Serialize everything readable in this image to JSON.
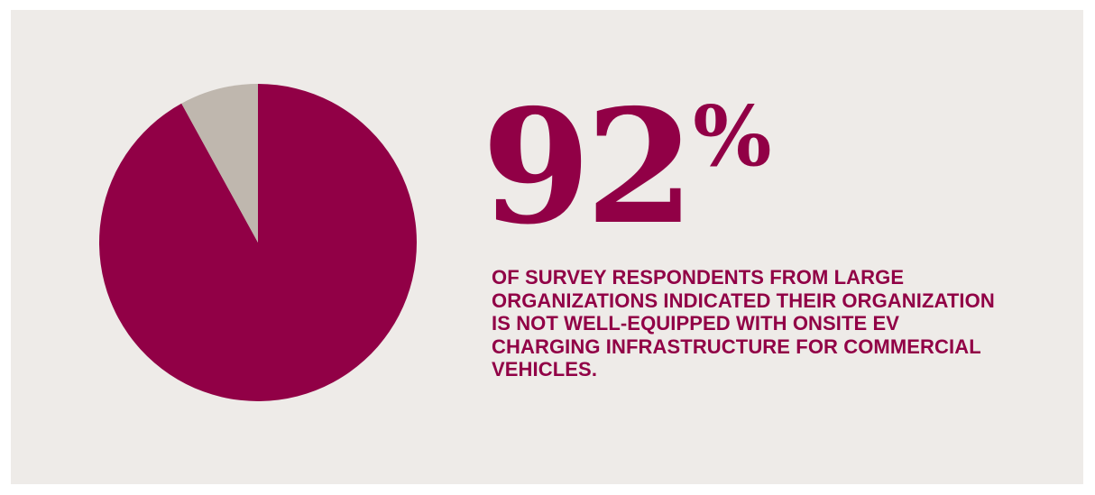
{
  "stat": {
    "number": "92",
    "percent_sign": "%",
    "caption": "OF SURVEY RESPONDENTS FROM LARGE ORGANIZATIONS INDICATED THEIR ORGANIZATION IS NOT WELL-EQUIPPED WITH ONSITE EV CHARGING INFRASTRUCTURE FOR COMMERCIAL VEHICLES."
  },
  "colors": {
    "background": "#eeebe8",
    "accent": "#910046",
    "secondary": "#bfb7ae"
  },
  "chart_data": {
    "type": "pie",
    "title": "",
    "slices": [
      {
        "value": 92,
        "color": "#910046"
      },
      {
        "value": 8,
        "color": "#bfb7ae"
      }
    ],
    "start_angle_deg": 0,
    "direction": "clockwise",
    "legend": "none"
  }
}
